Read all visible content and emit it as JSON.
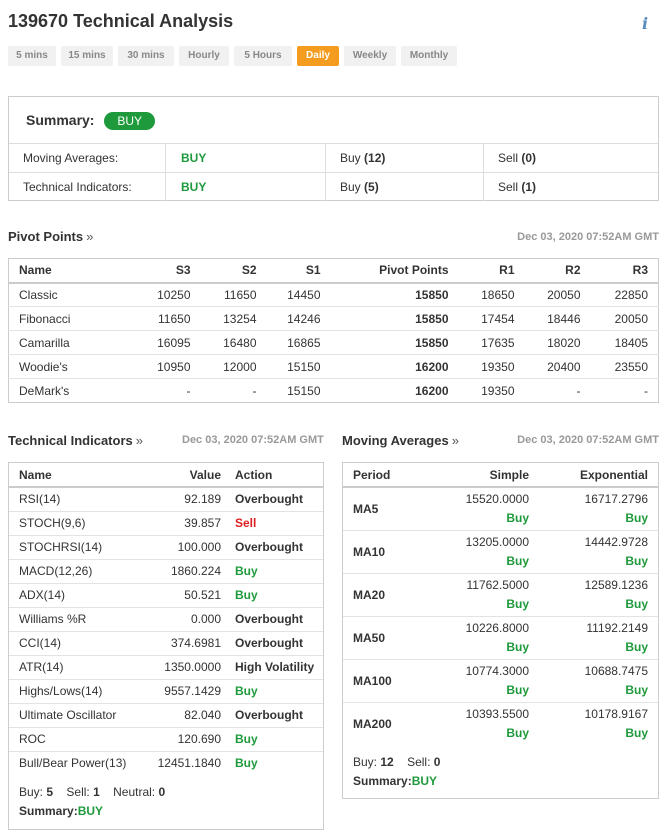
{
  "page": {
    "title": "139670 Technical Analysis"
  },
  "tabs": [
    "5 mins",
    "15 mins",
    "30 mins",
    "Hourly",
    "5 Hours",
    "Daily",
    "Weekly",
    "Monthly"
  ],
  "summary": {
    "label": "Summary:",
    "verdict": "BUY",
    "rows": [
      {
        "label": "Moving Averages:",
        "action": "BUY",
        "buy_label": "Buy",
        "buy": "(12)",
        "sell_label": "Sell",
        "sell": "(0)"
      },
      {
        "label": "Technical Indicators:",
        "action": "BUY",
        "buy_label": "Buy",
        "buy": "(5)",
        "sell_label": "Sell",
        "sell": "(1)"
      }
    ]
  },
  "pivot": {
    "title": "Pivot Points",
    "arrow": "»",
    "timestamp": "Dec 03, 2020 07:52AM GMT",
    "headers": [
      "Name",
      "S3",
      "S2",
      "S1",
      "Pivot Points",
      "R1",
      "R2",
      "R3"
    ],
    "rows": [
      [
        "Classic",
        "10250",
        "11650",
        "14450",
        "15850",
        "18650",
        "20050",
        "22850"
      ],
      [
        "Fibonacci",
        "11650",
        "13254",
        "14246",
        "15850",
        "17454",
        "18446",
        "20050"
      ],
      [
        "Camarilla",
        "16095",
        "16480",
        "16865",
        "15850",
        "17635",
        "18020",
        "18405"
      ],
      [
        "Woodie's",
        "10950",
        "12000",
        "15150",
        "16200",
        "19350",
        "20400",
        "23550"
      ],
      [
        "DeMark's",
        "-",
        "-",
        "15150",
        "16200",
        "19350",
        "-",
        "-"
      ]
    ]
  },
  "technical": {
    "title": "Technical Indicators",
    "arrow": "»",
    "timestamp": "Dec 03, 2020 07:52AM GMT",
    "headers": [
      "Name",
      "Value",
      "Action"
    ],
    "rows": [
      {
        "name": "RSI(14)",
        "value": "92.189",
        "action": "Overbought",
        "tone": "neutral"
      },
      {
        "name": "STOCH(9,6)",
        "value": "39.857",
        "action": "Sell",
        "tone": "sell"
      },
      {
        "name": "STOCHRSI(14)",
        "value": "100.000",
        "action": "Overbought",
        "tone": "neutral"
      },
      {
        "name": "MACD(12,26)",
        "value": "1860.224",
        "action": "Buy",
        "tone": "buy"
      },
      {
        "name": "ADX(14)",
        "value": "50.521",
        "action": "Buy",
        "tone": "buy"
      },
      {
        "name": "Williams %R",
        "value": "0.000",
        "action": "Overbought",
        "tone": "neutral"
      },
      {
        "name": "CCI(14)",
        "value": "374.6981",
        "action": "Overbought",
        "tone": "neutral"
      },
      {
        "name": "ATR(14)",
        "value": "1350.0000",
        "action": "High Volatility",
        "tone": "neutral"
      },
      {
        "name": "Highs/Lows(14)",
        "value": "9557.1429",
        "action": "Buy",
        "tone": "buy"
      },
      {
        "name": "Ultimate Oscillator",
        "value": "82.040",
        "action": "Overbought",
        "tone": "neutral"
      },
      {
        "name": "ROC",
        "value": "120.690",
        "action": "Buy",
        "tone": "buy"
      },
      {
        "name": "Bull/Bear Power(13)",
        "value": "12451.1840",
        "action": "Buy",
        "tone": "buy"
      }
    ],
    "footer": {
      "buy_label": "Buy:",
      "buy": "5",
      "sell_label": "Sell:",
      "sell": "1",
      "neutral_label": "Neutral:",
      "neutral": "0",
      "summary_label": "Summary:",
      "summary": "BUY"
    }
  },
  "moving": {
    "title": "Moving Averages",
    "arrow": "»",
    "timestamp": "Dec 03, 2020 07:52AM GMT",
    "headers": [
      "Period",
      "Simple",
      "Exponential"
    ],
    "rows": [
      {
        "period": "MA5",
        "simple": "15520.0000",
        "simple_action": "Buy",
        "exp": "16717.2796",
        "exp_action": "Buy"
      },
      {
        "period": "MA10",
        "simple": "13205.0000",
        "simple_action": "Buy",
        "exp": "14442.9728",
        "exp_action": "Buy"
      },
      {
        "period": "MA20",
        "simple": "11762.5000",
        "simple_action": "Buy",
        "exp": "12589.1236",
        "exp_action": "Buy"
      },
      {
        "period": "MA50",
        "simple": "10226.8000",
        "simple_action": "Buy",
        "exp": "11192.2149",
        "exp_action": "Buy"
      },
      {
        "period": "MA100",
        "simple": "10774.3000",
        "simple_action": "Buy",
        "exp": "10688.7475",
        "exp_action": "Buy"
      },
      {
        "period": "MA200",
        "simple": "10393.5500",
        "simple_action": "Buy",
        "exp": "10178.9167",
        "exp_action": "Buy"
      }
    ],
    "footer": {
      "buy_label": "Buy:",
      "buy": "12",
      "sell_label": "Sell:",
      "sell": "0",
      "summary_label": "Summary:",
      "summary": "BUY"
    }
  },
  "colors": {
    "buy": "#1e9a3c",
    "sell": "#dd1f1f",
    "active_tab": "#f39c1f"
  }
}
